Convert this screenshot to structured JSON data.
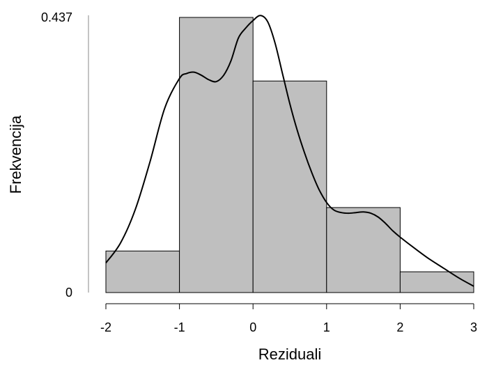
{
  "chart_data": {
    "type": "bar",
    "bins": [
      {
        "start": -2,
        "end": -1,
        "value": 0.066
      },
      {
        "start": -1,
        "end": 0,
        "value": 0.437
      },
      {
        "start": 0,
        "end": 1,
        "value": 0.336
      },
      {
        "start": 1,
        "end": 2,
        "value": 0.135
      },
      {
        "start": 2,
        "end": 3,
        "value": 0.033
      }
    ],
    "density_curve": {
      "x": [
        -2.0,
        -1.8,
        -1.6,
        -1.4,
        -1.2,
        -1.0,
        -0.9,
        -0.8,
        -0.7,
        -0.6,
        -0.5,
        -0.4,
        -0.3,
        -0.2,
        -0.1,
        0.0,
        0.1,
        0.2,
        0.3,
        0.4,
        0.5,
        0.6,
        0.7,
        0.8,
        0.9,
        1.0,
        1.1,
        1.2,
        1.3,
        1.4,
        1.5,
        1.6,
        1.7,
        1.8,
        1.9,
        2.0,
        2.2,
        2.4,
        2.6,
        2.8,
        3.0
      ],
      "y": [
        0.047,
        0.079,
        0.132,
        0.208,
        0.293,
        0.34,
        0.348,
        0.35,
        0.345,
        0.338,
        0.335,
        0.345,
        0.368,
        0.404,
        0.42,
        0.432,
        0.44,
        0.43,
        0.396,
        0.348,
        0.3,
        0.258,
        0.222,
        0.19,
        0.163,
        0.143,
        0.131,
        0.127,
        0.126,
        0.127,
        0.128,
        0.126,
        0.12,
        0.11,
        0.098,
        0.088,
        0.07,
        0.053,
        0.038,
        0.023,
        0.01
      ]
    },
    "xlabel": "Reziduali",
    "ylabel": "Frekvencija",
    "xticks": [
      "-2",
      "-1",
      "0",
      "1",
      "2",
      "3"
    ],
    "yticks": [
      "0",
      "0.437"
    ],
    "xlim": [
      -2,
      3
    ],
    "ylim": [
      0,
      0.437
    ]
  }
}
